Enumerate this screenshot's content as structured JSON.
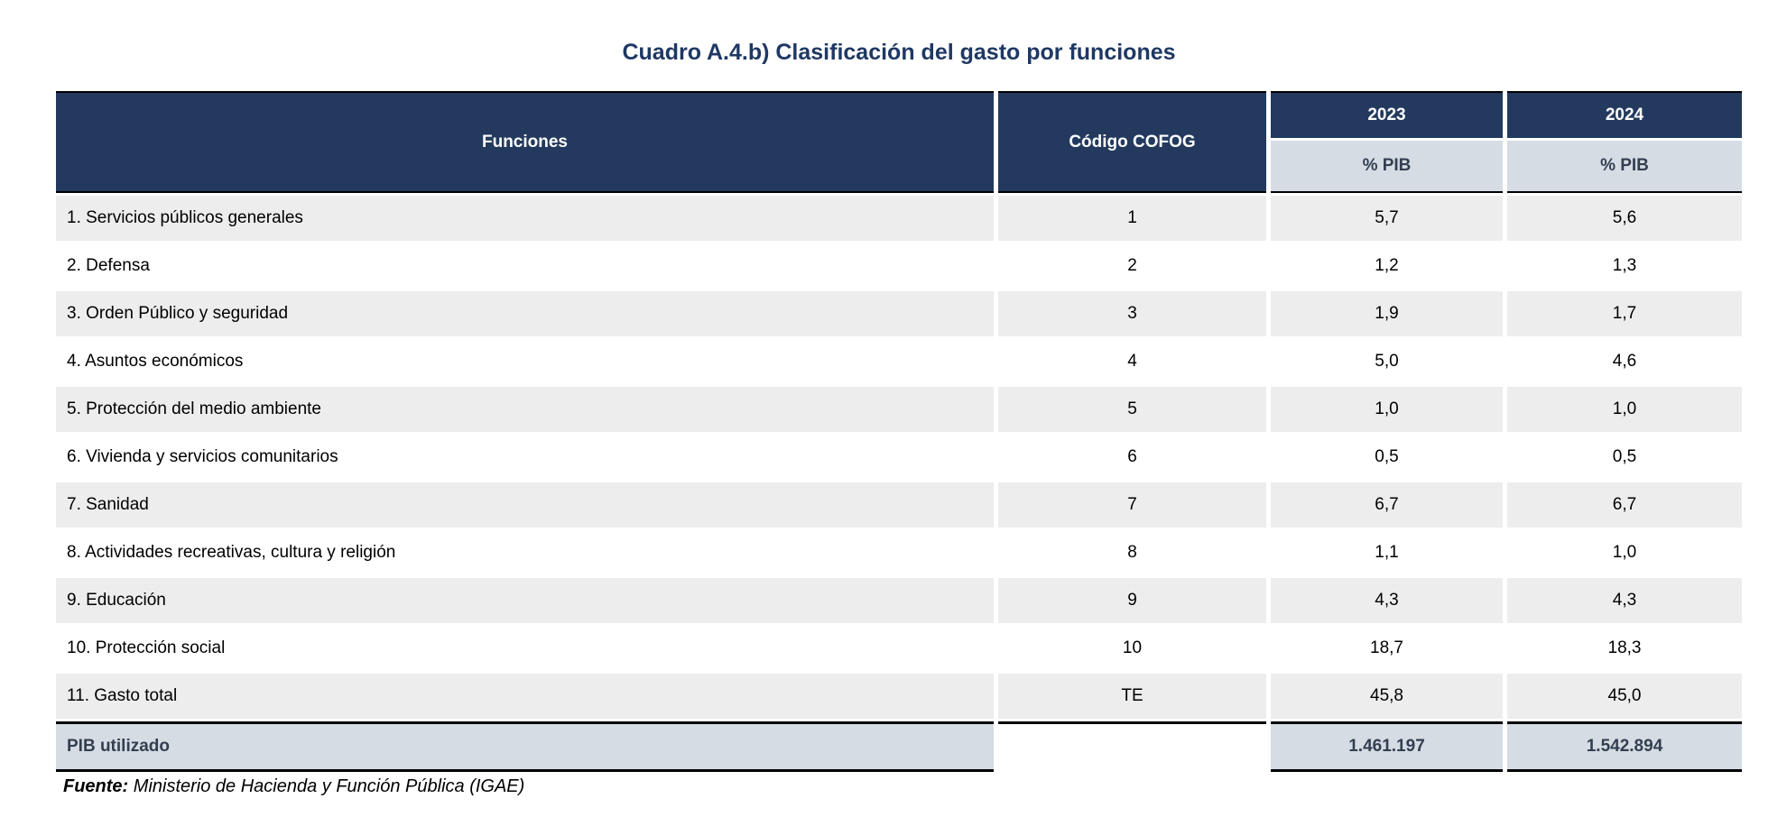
{
  "title": "Cuadro A.4.b) Clasificación del gasto por funciones",
  "colors": {
    "header_navy": "#233a5e",
    "header_light_blue": "#d6dce4",
    "row_stripe_gray": "#ededed",
    "title_navy": "#1f3864",
    "dark_slate_text": "#333f50"
  },
  "table": {
    "headers": {
      "funciones": "Funciones",
      "cofog": "Código COFOG",
      "y2023": "2023",
      "y2024": "2024",
      "pib": "% PIB"
    },
    "rows": [
      {
        "funcion": "1. Servicios públicos generales",
        "cofog": "1",
        "v2023": "5,7",
        "v2024": "5,6"
      },
      {
        "funcion": "2. Defensa",
        "cofog": "2",
        "v2023": "1,2",
        "v2024": "1,3"
      },
      {
        "funcion": "3. Orden Público y seguridad",
        "cofog": "3",
        "v2023": "1,9",
        "v2024": "1,7"
      },
      {
        "funcion": "4. Asuntos económicos",
        "cofog": "4",
        "v2023": "5,0",
        "v2024": "4,6"
      },
      {
        "funcion": "5. Protección del medio ambiente",
        "cofog": "5",
        "v2023": "1,0",
        "v2024": "1,0"
      },
      {
        "funcion": "6. Vivienda y servicios comunitarios",
        "cofog": "6",
        "v2023": "0,5",
        "v2024": "0,5"
      },
      {
        "funcion": "7. Sanidad",
        "cofog": "7",
        "v2023": "6,7",
        "v2024": "6,7"
      },
      {
        "funcion": "8. Actividades recreativas, cultura y religión",
        "cofog": "8",
        "v2023": "1,1",
        "v2024": "1,0"
      },
      {
        "funcion": "9. Educación",
        "cofog": "9",
        "v2023": "4,3",
        "v2024": "4,3"
      },
      {
        "funcion": "10. Protección social",
        "cofog": "10",
        "v2023": "18,7",
        "v2024": "18,3"
      },
      {
        "funcion": "11. Gasto total",
        "cofog": "TE",
        "v2023": "45,8",
        "v2024": "45,0"
      }
    ],
    "pib_row": {
      "label": "PIB utilizado",
      "v2023": "1.461.197",
      "v2024": "1.542.894"
    }
  },
  "source": {
    "label": "Fuente:",
    "text": "Ministerio de Hacienda y Función Pública (IGAE)"
  }
}
